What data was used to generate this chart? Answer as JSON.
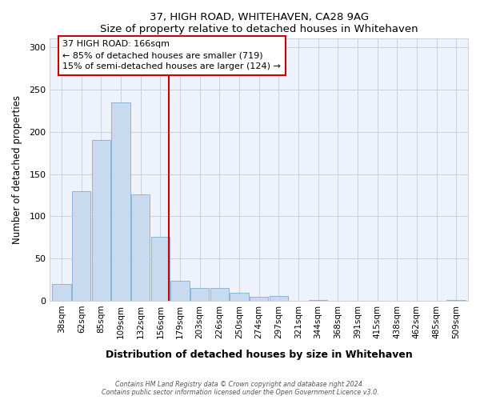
{
  "title": "37, HIGH ROAD, WHITEHAVEN, CA28 9AG",
  "subtitle": "Size of property relative to detached houses in Whitehaven",
  "xlabel": "Distribution of detached houses by size in Whitehaven",
  "ylabel": "Number of detached properties",
  "bar_color": "#c8daef",
  "bar_edge_color": "#7bafd4",
  "categories": [
    "38sqm",
    "62sqm",
    "85sqm",
    "109sqm",
    "132sqm",
    "156sqm",
    "179sqm",
    "203sqm",
    "226sqm",
    "250sqm",
    "274sqm",
    "297sqm",
    "321sqm",
    "344sqm",
    "368sqm",
    "391sqm",
    "415sqm",
    "438sqm",
    "462sqm",
    "485sqm",
    "509sqm"
  ],
  "values": [
    20,
    130,
    190,
    235,
    126,
    76,
    24,
    15,
    15,
    10,
    5,
    6,
    0,
    1,
    0,
    0,
    0,
    0,
    0,
    0,
    1
  ],
  "ylim": [
    0,
    310
  ],
  "yticks": [
    0,
    50,
    100,
    150,
    200,
    250,
    300
  ],
  "vline_x": 5.42,
  "vline_color": "#cc0000",
  "annotation_title": "37 HIGH ROAD: 166sqm",
  "annotation_line1": "← 85% of detached houses are smaller (719)",
  "annotation_line2": "15% of semi-detached houses are larger (124) →",
  "annotation_box_color": "#ffffff",
  "annotation_box_edge": "#cc0000",
  "footer_line1": "Contains HM Land Registry data © Crown copyright and database right 2024.",
  "footer_line2": "Contains public sector information licensed under the Open Government Licence v3.0.",
  "background_color": "#ffffff",
  "plot_bg_color": "#eef2fb"
}
